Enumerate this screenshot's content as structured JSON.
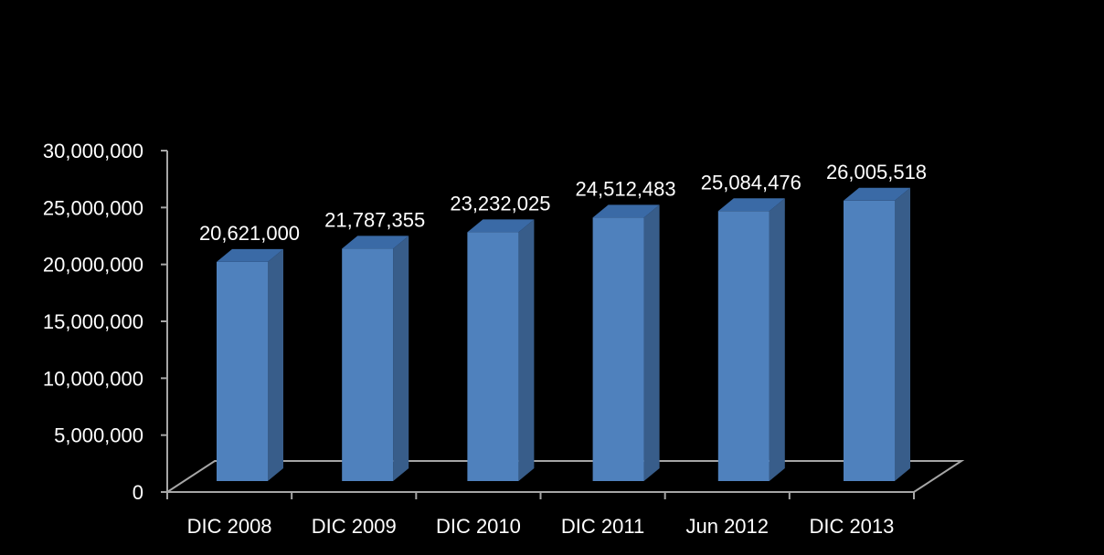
{
  "chart_data": {
    "type": "bar",
    "style": "3d-column",
    "categories": [
      "DIC 2008",
      "DIC 2009",
      "DIC 2010",
      "DIC 2011",
      "Jun 2012",
      "DIC 2013"
    ],
    "values": [
      20621000,
      21787355,
      23232025,
      24512483,
      25084476,
      26005518
    ],
    "data_labels": [
      "20,621,000",
      "21,787,355",
      "23,232,025",
      "24,512,483",
      "25,084,476",
      "26,005,518"
    ],
    "title": "",
    "xlabel": "",
    "ylabel": "",
    "ylim": [
      0,
      30000000
    ],
    "yticks": [
      0,
      5000000,
      10000000,
      15000000,
      20000000,
      25000000,
      30000000
    ],
    "ytick_labels": [
      "0",
      "5,000,000",
      "10,000,000",
      "15,000,000",
      "20,000,000",
      "25,000,000",
      "30,000,000"
    ],
    "grid": false,
    "legend": "none",
    "colors": {
      "background": "#000000",
      "bar_front": "#4f81bd",
      "bar_side": "#385d8a",
      "bar_top": "#3a6aa6",
      "axis": "#a6a6a6",
      "text": "#ffffff"
    }
  }
}
